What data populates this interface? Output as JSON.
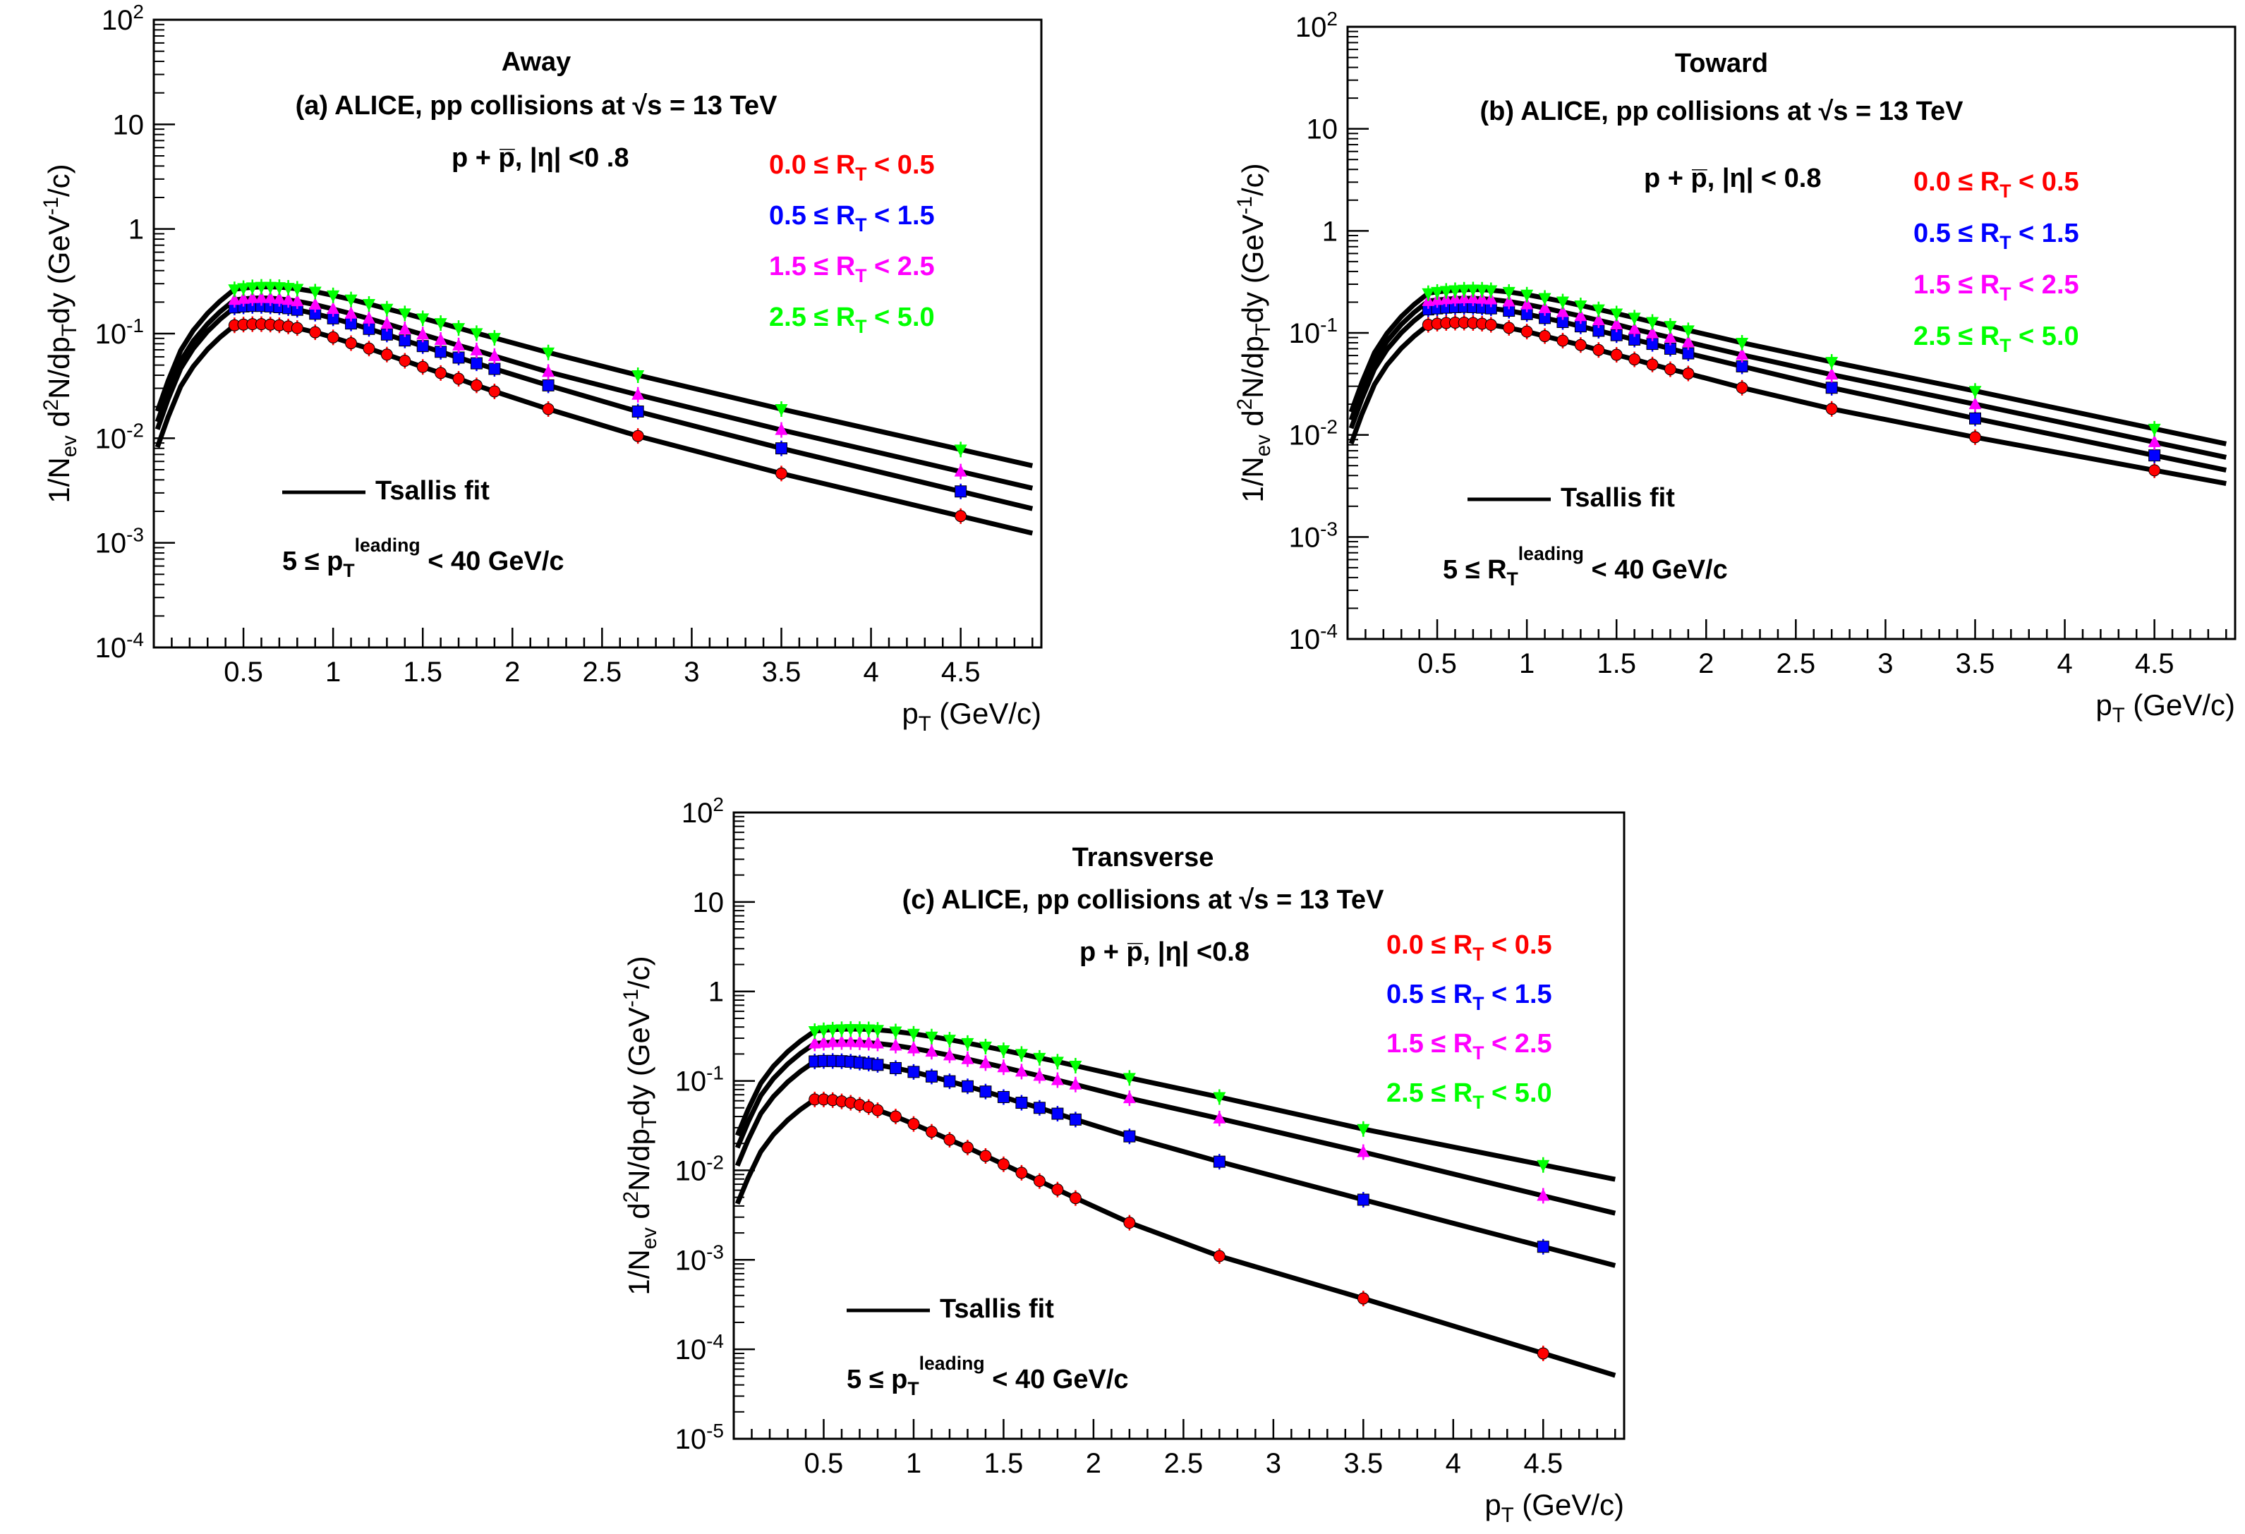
{
  "chart_data": [
    {
      "type": "scatter",
      "panel": "a",
      "title": "Away",
      "subtitle": "(a) ALICE, pp collisions at √s = 13 TeV",
      "particle": "p + p̅, |η| <0 .8",
      "fit_label": "Tsallis fit",
      "condition": "5 ≤ p_T^leading < 40 GeV/c",
      "xlabel": "p_T (GeV/c)",
      "ylabel": "1/N_ev d²N/dp_T dy (GeV⁻¹/c)",
      "xlim": [
        0,
        4.95
      ],
      "ylim_log10": [
        -4,
        2
      ],
      "yscale": "log",
      "x_ticks": [
        "0.5",
        "1",
        "1.5",
        "2",
        "2.5",
        "3",
        "3.5",
        "4",
        "4.5"
      ],
      "y_ticks": [
        "10^2",
        "10",
        "1",
        "10^-1",
        "10^-2",
        "10^-3",
        "10^-4"
      ],
      "x": [
        0.45,
        0.5,
        0.55,
        0.6,
        0.65,
        0.7,
        0.75,
        0.8,
        0.9,
        1.0,
        1.1,
        1.2,
        1.3,
        1.4,
        1.5,
        1.6,
        1.7,
        1.8,
        1.9,
        2.2,
        2.7,
        3.5,
        4.5
      ],
      "series": [
        {
          "name": "0.0 ≤ R_T < 0.5",
          "color": "#ff0000",
          "marker": "circle",
          "values": [
            0.12,
            0.122,
            0.123,
            0.123,
            0.122,
            0.12,
            0.117,
            0.113,
            0.103,
            0.092,
            0.081,
            0.072,
            0.063,
            0.055,
            0.048,
            0.042,
            0.037,
            0.032,
            0.028,
            0.019,
            0.0105,
            0.0046,
            0.0018
          ]
        },
        {
          "name": "0.5 ≤ R_T < 1.5",
          "color": "#0000ff",
          "marker": "square",
          "values": [
            0.178,
            0.182,
            0.184,
            0.184,
            0.182,
            0.179,
            0.175,
            0.169,
            0.155,
            0.14,
            0.125,
            0.111,
            0.098,
            0.086,
            0.076,
            0.067,
            0.059,
            0.052,
            0.046,
            0.032,
            0.018,
            0.008,
            0.0031
          ]
        },
        {
          "name": "1.5 ≤ R_T < 2.5",
          "color": "#ff00ff",
          "marker": "triangle-up",
          "values": [
            0.21,
            0.215,
            0.218,
            0.219,
            0.218,
            0.215,
            0.21,
            0.204,
            0.189,
            0.172,
            0.155,
            0.139,
            0.124,
            0.11,
            0.098,
            0.087,
            0.077,
            0.069,
            0.061,
            0.043,
            0.026,
            0.012,
            0.0048
          ]
        },
        {
          "name": "2.5 ≤ R_T < 5.0",
          "color": "#00ff00",
          "marker": "triangle-down",
          "values": [
            0.265,
            0.272,
            0.277,
            0.28,
            0.28,
            0.278,
            0.274,
            0.268,
            0.252,
            0.232,
            0.212,
            0.192,
            0.173,
            0.156,
            0.14,
            0.126,
            0.113,
            0.101,
            0.091,
            0.066,
            0.04,
            0.019,
            0.0078
          ]
        }
      ]
    },
    {
      "type": "scatter",
      "panel": "b",
      "title": "Toward",
      "subtitle": "(b) ALICE, pp collisions at √s = 13 TeV",
      "particle": "p + p̅, |η| < 0.8",
      "fit_label": "Tsallis fit",
      "condition": "5 ≤ R_T^leading < 40 GeV/c",
      "xlabel": "p_T (GeV/c)",
      "ylabel": "1/N_ev d²N/dp_T dy (GeV⁻¹/c)",
      "xlim": [
        0,
        4.95
      ],
      "ylim_log10": [
        -4,
        2
      ],
      "yscale": "log",
      "x_ticks": [
        "0.5",
        "1",
        "1.5",
        "2",
        "2.5",
        "3",
        "3.5",
        "4",
        "4.5"
      ],
      "y_ticks": [
        "10^2",
        "10",
        "1",
        "10^-1",
        "10^-2",
        "10^-3",
        "10^-4"
      ],
      "x": [
        0.45,
        0.5,
        0.55,
        0.6,
        0.65,
        0.7,
        0.75,
        0.8,
        0.9,
        1.0,
        1.1,
        1.2,
        1.3,
        1.4,
        1.5,
        1.6,
        1.7,
        1.8,
        1.9,
        2.2,
        2.7,
        3.5,
        4.5
      ],
      "series": [
        {
          "name": "0.0 ≤ R_T < 0.5",
          "color": "#ff0000",
          "marker": "circle",
          "values": [
            0.12,
            0.123,
            0.125,
            0.126,
            0.126,
            0.125,
            0.123,
            0.12,
            0.112,
            0.103,
            0.093,
            0.084,
            0.076,
            0.068,
            0.061,
            0.055,
            0.049,
            0.044,
            0.04,
            0.029,
            0.018,
            0.0095,
            0.0045
          ]
        },
        {
          "name": "0.5 ≤ R_T < 1.5",
          "color": "#0000ff",
          "marker": "square",
          "values": [
            0.17,
            0.174,
            0.177,
            0.179,
            0.18,
            0.179,
            0.177,
            0.174,
            0.165,
            0.153,
            0.14,
            0.128,
            0.116,
            0.105,
            0.095,
            0.086,
            0.078,
            0.07,
            0.063,
            0.047,
            0.029,
            0.0145,
            0.0063
          ]
        },
        {
          "name": "1.5 ≤ R_T < 2.5",
          "color": "#ff00ff",
          "marker": "triangle-up",
          "values": [
            0.205,
            0.21,
            0.214,
            0.217,
            0.218,
            0.218,
            0.216,
            0.213,
            0.203,
            0.19,
            0.175,
            0.16,
            0.146,
            0.133,
            0.121,
            0.109,
            0.099,
            0.09,
            0.081,
            0.061,
            0.039,
            0.02,
            0.0085
          ]
        },
        {
          "name": "2.5 ≤ R_T < 5.0",
          "color": "#00ff00",
          "marker": "triangle-down",
          "values": [
            0.245,
            0.252,
            0.258,
            0.262,
            0.265,
            0.266,
            0.265,
            0.262,
            0.252,
            0.237,
            0.22,
            0.203,
            0.186,
            0.17,
            0.155,
            0.141,
            0.128,
            0.117,
            0.106,
            0.08,
            0.052,
            0.027,
            0.0115
          ]
        }
      ]
    },
    {
      "type": "scatter",
      "panel": "c",
      "title": "Transverse",
      "subtitle": "(c) ALICE, pp collisions at √s = 13 TeV",
      "particle": "p + p̅, |η| <0.8",
      "fit_label": "Tsallis fit",
      "condition": "5 ≤ p_T^leading < 40 GeV/c",
      "xlabel": "p_T (GeV/c)",
      "ylabel": "1/N_ev d²N/dp_T dy (GeV⁻¹/c)",
      "xlim": [
        0,
        4.95
      ],
      "ylim_log10": [
        -5,
        2
      ],
      "yscale": "log",
      "x_ticks": [
        "0.5",
        "1",
        "1.5",
        "2",
        "2.5",
        "3",
        "3.5",
        "4",
        "4.5"
      ],
      "y_ticks": [
        "10^2",
        "10",
        "1",
        "10^-1",
        "10^-2",
        "10^-3",
        "10^-4",
        "10^-5"
      ],
      "x": [
        0.45,
        0.5,
        0.55,
        0.6,
        0.65,
        0.7,
        0.75,
        0.8,
        0.9,
        1.0,
        1.1,
        1.2,
        1.3,
        1.4,
        1.5,
        1.6,
        1.7,
        1.8,
        1.9,
        2.2,
        2.7,
        3.5,
        4.5
      ],
      "series": [
        {
          "name": "0.0 ≤ R_T < 0.5",
          "color": "#ff0000",
          "marker": "circle",
          "values": [
            0.062,
            0.062,
            0.061,
            0.059,
            0.057,
            0.054,
            0.051,
            0.047,
            0.04,
            0.033,
            0.027,
            0.022,
            0.018,
            0.0145,
            0.0117,
            0.0094,
            0.0076,
            0.0061,
            0.0049,
            0.0026,
            0.0011,
            0.00037,
            9e-05
          ]
        },
        {
          "name": "0.5 ≤ R_T < 1.5",
          "color": "#0000ff",
          "marker": "square",
          "values": [
            0.165,
            0.167,
            0.167,
            0.166,
            0.164,
            0.16,
            0.156,
            0.151,
            0.139,
            0.126,
            0.112,
            0.099,
            0.087,
            0.076,
            0.066,
            0.057,
            0.05,
            0.043,
            0.037,
            0.024,
            0.0125,
            0.0047,
            0.0014
          ]
        },
        {
          "name": "1.5 ≤ R_T < 2.5",
          "color": "#ff00ff",
          "marker": "triangle-up",
          "values": [
            0.262,
            0.267,
            0.271,
            0.272,
            0.272,
            0.27,
            0.267,
            0.262,
            0.248,
            0.231,
            0.212,
            0.193,
            0.175,
            0.158,
            0.142,
            0.127,
            0.114,
            0.102,
            0.091,
            0.064,
            0.038,
            0.016,
            0.0052
          ]
        },
        {
          "name": "2.5 ≤ R_T < 5.0",
          "color": "#00ff00",
          "marker": "triangle-down",
          "values": [
            0.36,
            0.368,
            0.374,
            0.378,
            0.38,
            0.379,
            0.377,
            0.372,
            0.357,
            0.336,
            0.313,
            0.289,
            0.265,
            0.242,
            0.22,
            0.2,
            0.181,
            0.164,
            0.148,
            0.108,
            0.066,
            0.029,
            0.0115
          ]
        }
      ]
    }
  ]
}
